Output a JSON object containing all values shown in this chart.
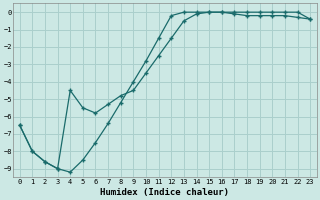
{
  "xlabel": "Humidex (Indice chaleur)",
  "ylabel": "",
  "bg_color": "#cce8e4",
  "grid_color": "#aacfcc",
  "line_color": "#1a6b6b",
  "xlim": [
    -0.5,
    23.5
  ],
  "ylim": [
    -9.5,
    0.5
  ],
  "xticks": [
    0,
    1,
    2,
    3,
    4,
    5,
    6,
    7,
    8,
    9,
    10,
    11,
    12,
    13,
    14,
    15,
    16,
    17,
    18,
    19,
    20,
    21,
    22,
    23
  ],
  "yticks": [
    0,
    -1,
    -2,
    -3,
    -4,
    -5,
    -6,
    -7,
    -8,
    -9
  ],
  "curve1_x": [
    0,
    1,
    2,
    3,
    4,
    5,
    6,
    7,
    8,
    9,
    10,
    11,
    12,
    13,
    14,
    15,
    16,
    17,
    18,
    19,
    20,
    21,
    22,
    23
  ],
  "curve1_y": [
    -6.5,
    -8.0,
    -8.6,
    -9.0,
    -9.2,
    -8.5,
    -7.5,
    -6.4,
    -5.2,
    -4.0,
    -2.8,
    -1.5,
    -0.2,
    0.0,
    0.0,
    0.0,
    0.0,
    0.0,
    0.0,
    0.0,
    0.0,
    0.0,
    0.0,
    -0.4
  ],
  "curve2_x": [
    0,
    1,
    2,
    3,
    4,
    5,
    6,
    7,
    8,
    9,
    10,
    11,
    12,
    13,
    14,
    15,
    16,
    17,
    18,
    19,
    20,
    21,
    22,
    23
  ],
  "curve2_y": [
    -6.5,
    -8.0,
    -8.6,
    -9.0,
    -4.5,
    -5.5,
    -5.8,
    -5.3,
    -4.8,
    -4.5,
    -3.5,
    -2.5,
    -1.5,
    -0.5,
    -0.1,
    0.0,
    0.0,
    -0.1,
    -0.2,
    -0.2,
    -0.2,
    -0.2,
    -0.3,
    -0.4
  ],
  "marker": "+",
  "markersize": 3,
  "linewidth": 0.9,
  "tick_fontsize": 5,
  "xlabel_fontsize": 6.5
}
